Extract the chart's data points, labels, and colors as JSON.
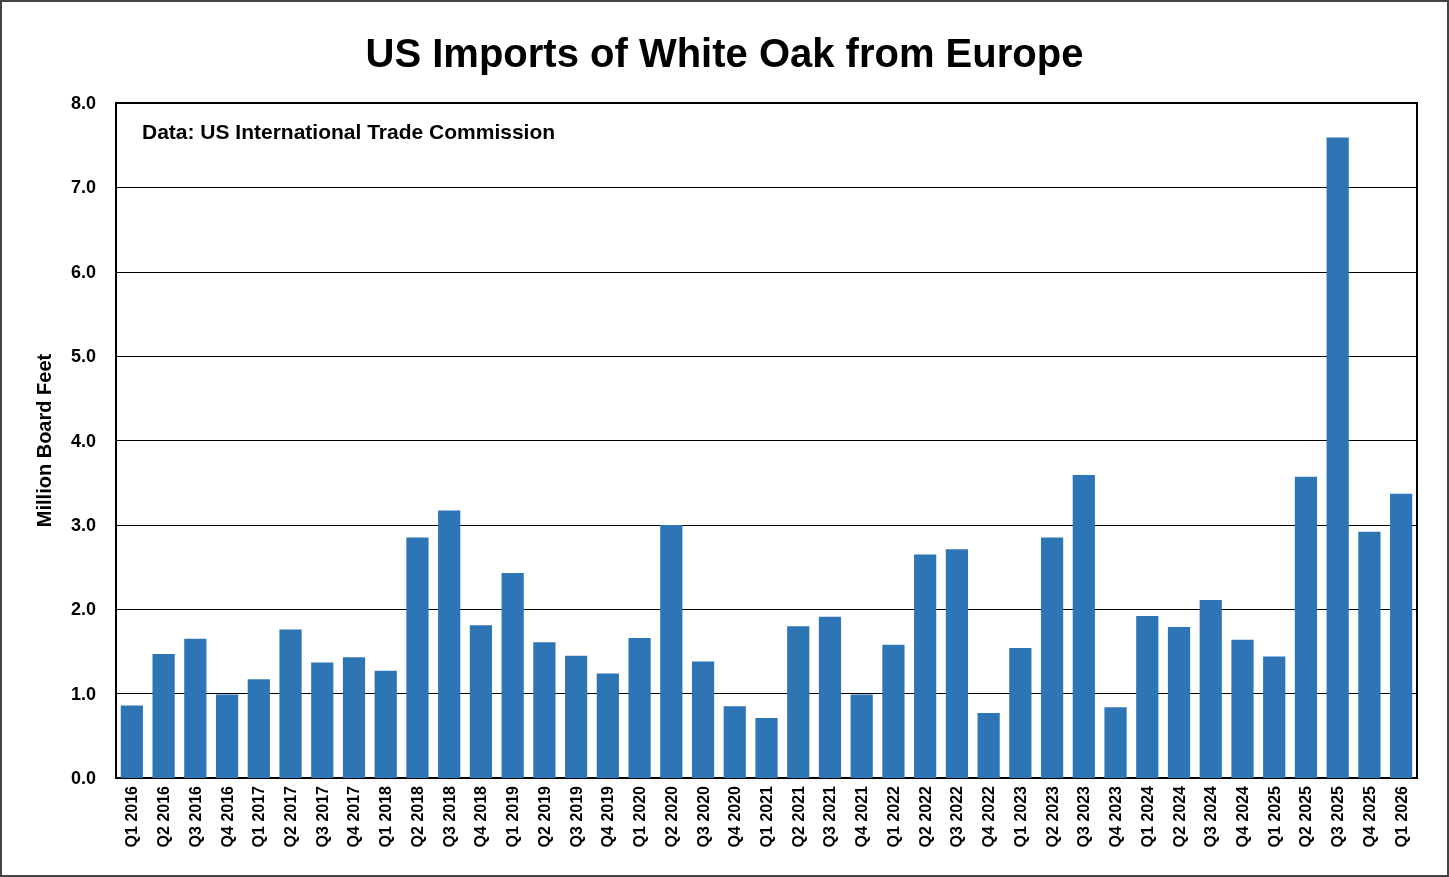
{
  "chart_data": {
    "type": "bar",
    "title": "US Imports of White Oak from Europe",
    "ylabel": "Million Board Feet",
    "annotations": [
      "Data: US International Trade Commission"
    ],
    "categories": [
      "Q1 2016",
      "Q2 2016",
      "Q3 2016",
      "Q4 2016",
      "Q1 2017",
      "Q2 2017",
      "Q3 2017",
      "Q4 2017",
      "Q1 2018",
      "Q2 2018",
      "Q3 2018",
      "Q4 2018",
      "Q1 2019",
      "Q2 2019",
      "Q3 2019",
      "Q4 2019",
      "Q1 2020",
      "Q2 2020",
      "Q3 2020",
      "Q4 2020",
      "Q1 2021",
      "Q2 2021",
      "Q3 2021",
      "Q4 2021",
      "Q1 2022",
      "Q2 2022",
      "Q3 2022",
      "Q4 2022",
      "Q1 2023",
      "Q2 2023",
      "Q3 2023",
      "Q4 2023",
      "Q1 2024",
      "Q2 2024",
      "Q3 2024",
      "Q4 2024",
      "Q1 2025",
      "Q2 2025",
      "Q3 2025",
      "Q4 2025",
      "Q1 2026"
    ],
    "values": [
      0.86,
      1.47,
      1.65,
      0.99,
      1.17,
      1.76,
      1.37,
      1.43,
      1.27,
      2.85,
      3.17,
      1.81,
      2.43,
      1.61,
      1.45,
      1.24,
      1.66,
      3.0,
      1.38,
      0.85,
      0.71,
      1.8,
      1.91,
      0.99,
      1.58,
      2.65,
      2.71,
      0.77,
      1.54,
      2.85,
      3.59,
      0.84,
      1.92,
      1.79,
      2.11,
      1.64,
      1.44,
      3.57,
      7.59,
      2.92,
      3.37
    ],
    "color": "#2e75b6",
    "ylim": [
      0,
      8
    ],
    "yticks": [
      {
        "value": 0,
        "label": "0.0"
      },
      {
        "value": 1,
        "label": "1.0"
      },
      {
        "value": 2,
        "label": "2.0"
      },
      {
        "value": 3,
        "label": "3.0"
      },
      {
        "value": 4,
        "label": "4.0"
      },
      {
        "value": 5,
        "label": "5.0"
      },
      {
        "value": 6,
        "label": "6.0"
      },
      {
        "value": 7,
        "label": "7.0"
      },
      {
        "value": 8,
        "label": "8.0"
      }
    ],
    "grid": "y"
  }
}
